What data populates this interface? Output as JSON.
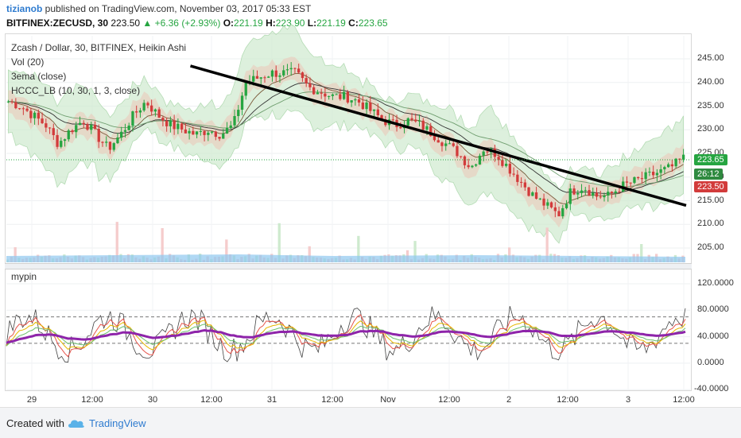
{
  "header": {
    "user": "tizianob",
    "published": "published on TradingView.com, November 03, 2017 05:33 EST",
    "symbol": "BITFINEX:ZECUSD, 30",
    "last": "223.50",
    "change": "▲ +6.36 (+2.93%)",
    "o_label": "O:",
    "o_val": "221.19",
    "h_label": "H:",
    "h_val": "223.90",
    "l_label": "L:",
    "l_val": "221.19",
    "c_label": "C:",
    "c_val": "223.65"
  },
  "legend": {
    "title": "Zcash / Dollar, 30, BITFINEX, Heikin Ashi",
    "vol": "Vol (20)",
    "ema": "3ema (close)",
    "hccc": "HCCC_LB (10, 30, 1, 3, close)",
    "osc": "mypin"
  },
  "badges": {
    "close": "223.65",
    "timer": "26:12",
    "last": "223.50"
  },
  "colors": {
    "up": "#26a541",
    "down": "#d23b3b",
    "ema_line": "#8e24aa",
    "band": "#cfe9cf",
    "trend": "#000000"
  },
  "footer": {
    "created": "Created with",
    "brand": "TradingView"
  },
  "chart_data": [
    {
      "type": "candlestick",
      "title": "Zcash / Dollar, 30, BITFINEX, Heikin Ashi",
      "y_ticks": [
        "245.00",
        "240.00",
        "235.00",
        "230.00",
        "225.00",
        "220.00",
        "215.00",
        "210.00",
        "205.00"
      ],
      "ylim": [
        202,
        248
      ],
      "x_ticks": [
        "29",
        "12:00",
        "30",
        "12:00",
        "31",
        "12:00",
        "Nov",
        "12:00",
        "2",
        "12:00",
        "3",
        "12:00"
      ],
      "close_path": [
        236,
        235,
        233,
        231,
        227,
        230,
        232,
        229,
        226,
        229,
        233,
        236,
        233,
        231,
        230,
        229,
        230,
        229,
        231,
        240,
        241,
        242,
        242,
        242,
        239,
        238,
        237,
        237,
        236,
        234,
        232,
        231,
        232,
        231,
        229,
        227,
        225,
        222,
        226,
        225,
        222,
        219,
        216,
        214,
        212,
        217,
        218,
        216,
        216,
        218,
        219,
        220,
        221,
        222,
        224
      ],
      "trendline": {
        "from": [
          239.5,
          243.5
        ],
        "to": [
          863,
          214
        ]
      }
    },
    {
      "type": "line",
      "title": "mypin",
      "y_ticks": [
        "120.0000",
        "80.0000",
        "40.0000",
        "0.0000",
        "-40.0000"
      ],
      "ylim": [
        -45,
        140
      ],
      "levels": [
        70,
        30
      ]
    }
  ]
}
